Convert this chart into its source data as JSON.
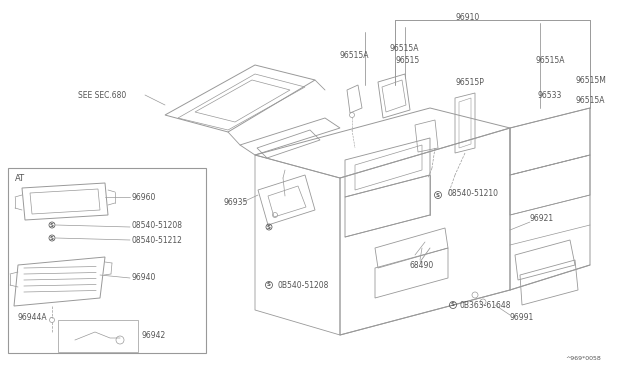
{
  "bg_color": "#ffffff",
  "line_color": "#999999",
  "text_color": "#555555",
  "diagram_code": "^969*0058",
  "labels": {
    "see_sec": "SEE SEC.680",
    "at_box": "AT",
    "96910": "96910",
    "96515A_1": "96515A",
    "96515A_2": "96515A",
    "96515A_3": "96515A",
    "96515": "96515",
    "96515P": "96515P",
    "96515M": "96515M",
    "96533": "96533",
    "96935": "96935",
    "96921": "96921",
    "08540_51210": "08540-51210",
    "08540_51208_main": "0B540-51208",
    "08363_61648": "0B363-61648",
    "68490": "68490",
    "96991": "96991",
    "96960": "96960",
    "08540_51208_at": "08540-51208",
    "08540_51212": "08540-51212",
    "96940": "96940",
    "96944A": "96944A",
    "96942": "96942"
  }
}
